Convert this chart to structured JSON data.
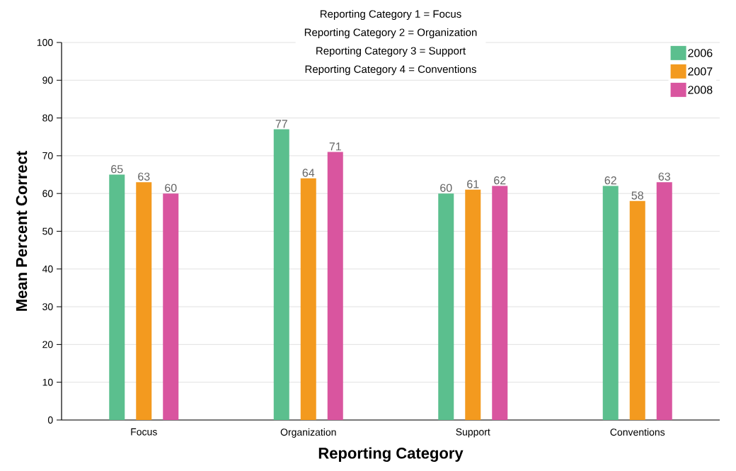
{
  "chart_data": {
    "type": "bar",
    "xlabel": "Reporting Category",
    "ylabel": "Mean Percent Correct",
    "categories": [
      "Focus",
      "Organization",
      "Support",
      "Conventions"
    ],
    "series": [
      {
        "name": "2006",
        "color": "#5bbf8e",
        "values": [
          65,
          77,
          60,
          62
        ]
      },
      {
        "name": "2007",
        "color": "#f39a1f",
        "values": [
          63,
          64,
          61,
          58
        ]
      },
      {
        "name": "2008",
        "color": "#d9559f",
        "values": [
          60,
          71,
          62,
          63
        ]
      }
    ],
    "ylim": [
      0,
      100
    ],
    "yticks": [
      0,
      10,
      20,
      30,
      40,
      50,
      60,
      70,
      80,
      90,
      100
    ],
    "grid": "y",
    "legend": "top right",
    "data_labels": true,
    "annotations": [
      "Reporting Category 1 = Focus",
      "Reporting Category 2 = Organization",
      "Reporting Category 3 = Support",
      "Reporting Category 4 = Conventions"
    ]
  }
}
